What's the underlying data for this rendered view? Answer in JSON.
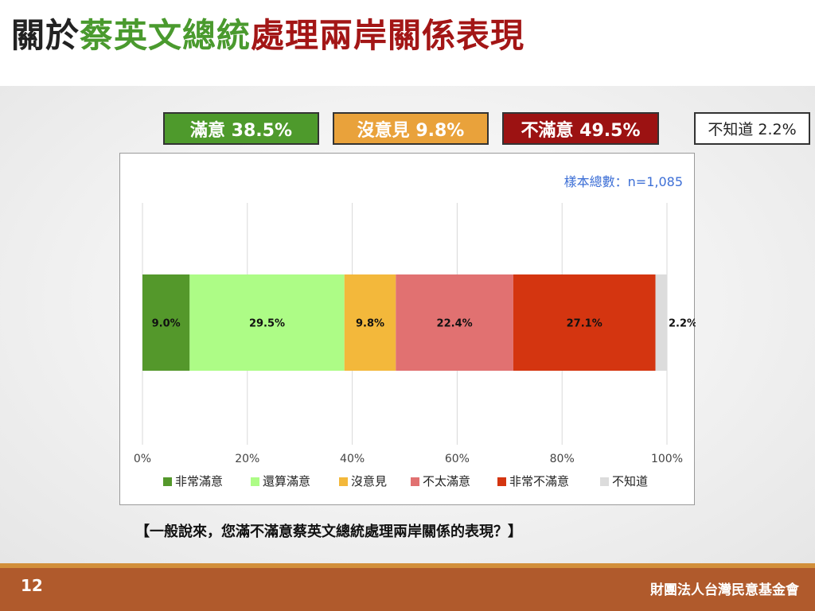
{
  "title": {
    "part1": "關於",
    "part2": "蔡英文總統",
    "part3": "處理兩岸關係表現"
  },
  "summary": {
    "satisfied": "滿意 38.5%",
    "no_opinion": "沒意見 9.8%",
    "dissatisfied": "不滿意 49.5%",
    "dont_know": "不知道 2.2%"
  },
  "sample_size": "樣本總數：n=1,085",
  "question": "【一般說來，您滿不滿意蔡英文總統處理兩岸關係的表現？】",
  "page_number": "12",
  "organization": "財團法人台灣民意基金會",
  "colors": {
    "very_satisfied": "#54982b",
    "fairly_satisfied": "#adfc86",
    "no_opinion": "#f3b83b",
    "not_very_satisfied": "#e17171",
    "very_dissatisfied": "#d43510",
    "dont_know": "#dcdcdc"
  },
  "chart_data": {
    "type": "bar",
    "orientation": "horizontal",
    "stacked": true,
    "xlim": [
      0,
      100
    ],
    "x_ticks": [
      "0%",
      "20%",
      "40%",
      "60%",
      "80%",
      "100%"
    ],
    "grid": true,
    "legend_position": "bottom",
    "series": [
      {
        "name": "非常滿意",
        "value": 9.0,
        "label": "9.0%",
        "color": "#54982b"
      },
      {
        "name": "還算滿意",
        "value": 29.5,
        "label": "29.5%",
        "color": "#adfc86"
      },
      {
        "name": "沒意見",
        "value": 9.8,
        "label": "9.8%",
        "color": "#f3b83b"
      },
      {
        "name": "不太滿意",
        "value": 22.4,
        "label": "22.4%",
        "color": "#e17171"
      },
      {
        "name": "非常不滿意",
        "value": 27.1,
        "label": "27.1%",
        "color": "#d43510"
      },
      {
        "name": "不知道",
        "value": 2.2,
        "label": "2.2%",
        "color": "#dcdcdc"
      }
    ]
  }
}
